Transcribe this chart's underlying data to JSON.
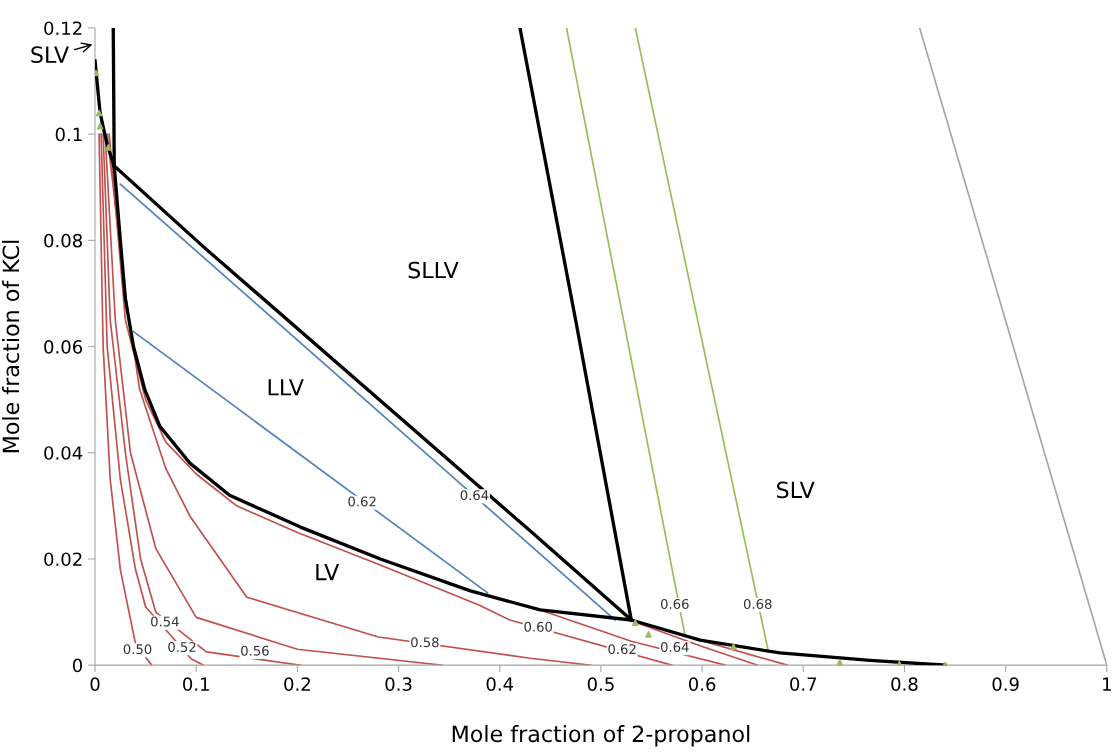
{
  "chart_data": {
    "type": "line",
    "xlabel": "Mole fraction of 2-propanol",
    "ylabel": "Mole fraction of KCl",
    "xlim": [
      0,
      1
    ],
    "ylim": [
      0,
      0.12
    ],
    "xticks": [
      0,
      0.1,
      0.2,
      0.3,
      0.4,
      0.5,
      0.6,
      0.7,
      0.8,
      0.9,
      1
    ],
    "yticks": [
      0,
      0.02,
      0.04,
      0.06,
      0.08,
      0.1,
      0.12
    ],
    "grid": false,
    "marker": "none",
    "line_style": "solid",
    "series": [
      {
        "color": "#c0504d",
        "x": [
          0.004,
          0.008,
          0.015,
          0.025,
          0.04,
          0.056
        ],
        "values": [
          0.1,
          0.06,
          0.035,
          0.018,
          0.004,
          0
        ]
      },
      {
        "color": "#c0504d",
        "x": [
          0.006,
          0.012,
          0.025,
          0.04,
          0.05,
          0.095,
          0.107
        ],
        "values": [
          0.1,
          0.06,
          0.035,
          0.018,
          0.011,
          0.0012,
          0
        ]
      },
      {
        "color": "#c0504d",
        "x": [
          0.008,
          0.015,
          0.03,
          0.045,
          0.06,
          0.11,
          0.203
        ],
        "values": [
          0.1,
          0.065,
          0.04,
          0.02,
          0.01,
          0.0025,
          0
        ]
      },
      {
        "color": "#c0504d",
        "x": [
          0.01,
          0.02,
          0.035,
          0.06,
          0.1,
          0.2,
          0.343
        ],
        "values": [
          0.1,
          0.065,
          0.04,
          0.022,
          0.009,
          0.003,
          0
        ]
      },
      {
        "color": "#c0504d",
        "x": [
          0.012,
          0.03,
          0.044,
          0.07,
          0.094,
          0.15,
          0.28,
          0.43,
          0.49
        ],
        "values": [
          0.1,
          0.07,
          0.052,
          0.037,
          0.028,
          0.0128,
          0.0053,
          0.0013,
          0
        ]
      },
      {
        "color": "#c0504d",
        "x": [
          0.014,
          0.03,
          0.05,
          0.07,
          0.1,
          0.14,
          0.2,
          0.28,
          0.38,
          0.41,
          0.57
        ],
        "values": [
          0.1,
          0.065,
          0.05,
          0.042,
          0.036,
          0.03,
          0.025,
          0.019,
          0.0113,
          0.0085,
          0
        ]
      },
      {
        "color": "#c0504d",
        "x": [
          0.44,
          0.53,
          0.623
        ],
        "values": [
          0.0104,
          0.0045,
          0
        ]
      },
      {
        "color": "#c0504d",
        "x": [
          0.532,
          0.6,
          0.655
        ],
        "values": [
          0.0082,
          0.0035,
          0
        ]
      },
      {
        "color": "#c0504d",
        "x": [
          0.591,
          0.684
        ],
        "values": [
          0.0051,
          0
        ]
      },
      {
        "color": "#4f81bd",
        "x": [
          0.038,
          0.388
        ],
        "values": [
          0.0628,
          0.0136
        ]
      },
      {
        "color": "#4f81bd",
        "x": [
          0.025,
          0.514
        ],
        "values": [
          0.0906,
          0.0085
        ]
      },
      {
        "color": "#9bbb59",
        "x": [
          0.466,
          0.583
        ],
        "values": [
          0.12,
          0.0057
        ]
      },
      {
        "color": "#9bbb59",
        "x": [
          0.534,
          0.665
        ],
        "values": [
          0.12,
          0.003
        ]
      },
      {
        "color": "#a6a6a6",
        "x": [
          0.815,
          1.0
        ],
        "values": [
          0.12,
          0
        ]
      },
      {
        "color": "#000000",
        "x": [
          0.0,
          0.005,
          0.012,
          0.019,
          0.025,
          0.03,
          0.038,
          0.049,
          0.064,
          0.094,
          0.133,
          0.203,
          0.282,
          0.371,
          0.44,
          0.53,
          0.598,
          0.677,
          0.766,
          0.84
        ],
        "values": [
          0.1138,
          0.104,
          0.098,
          0.094,
          0.08,
          0.069,
          0.06,
          0.052,
          0.045,
          0.038,
          0.032,
          0.026,
          0.02,
          0.014,
          0.0104,
          0.0085,
          0.0047,
          0.0023,
          0.0009,
          0
        ]
      },
      {
        "color": "#000000",
        "x": [
          0.018,
          0.019
        ],
        "values": [
          0.12,
          0.094
        ]
      },
      {
        "color": "#000000",
        "x": [
          0.019,
          0.11,
          0.43,
          0.53
        ],
        "values": [
          0.094,
          0.0783,
          0.0253,
          0.0085
        ]
      },
      {
        "color": "#000000",
        "x": [
          0.42,
          0.475,
          0.53
        ],
        "values": [
          0.12,
          0.065,
          0.0085
        ]
      },
      {
        "type": "scatter",
        "marker": "triangle",
        "color": "#9bbb59",
        "x": [
          0.001,
          0.004,
          0.005,
          0.013,
          0.534,
          0.547,
          0.631,
          0.736,
          0.795,
          0.84
        ],
        "values": [
          0.1115,
          0.104,
          0.1015,
          0.0975,
          0.008,
          0.0058,
          0.0035,
          0.0005,
          0.0002,
          0
        ]
      }
    ],
    "annotations": [
      "SLV",
      "SLLV",
      "LLV",
      "LV",
      "SLV",
      {
        "text": "0.50",
        "x": 0.042,
        "y": 0.0028
      },
      {
        "text": "0.52",
        "x": 0.086,
        "y": 0.0032
      },
      {
        "text": "0.54",
        "x": 0.069,
        "y": 0.008
      },
      {
        "text": "0.56",
        "x": 0.158,
        "y": 0.0025
      },
      {
        "text": "0.58",
        "x": 0.326,
        "y": 0.0041
      },
      {
        "text": "0.60",
        "x": 0.438,
        "y": 0.007
      },
      {
        "text": "0.62",
        "x": 0.521,
        "y": 0.0028
      },
      {
        "text": "0.64",
        "x": 0.573,
        "y": 0.0032
      },
      {
        "text": "0.62",
        "x": 0.264,
        "y": 0.0306
      },
      {
        "text": "0.64",
        "x": 0.375,
        "y": 0.0318
      },
      {
        "text": "0.66",
        "x": 0.573,
        "y": 0.0113
      },
      {
        "text": "0.68",
        "x": 0.655,
        "y": 0.0113
      }
    ]
  }
}
